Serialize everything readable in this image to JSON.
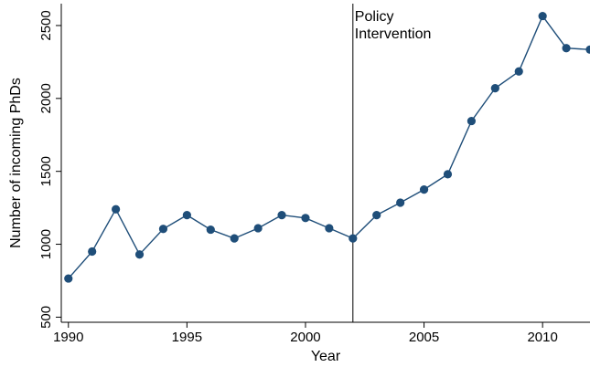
{
  "chart_data": {
    "type": "line",
    "title": "",
    "xlabel": "Year",
    "ylabel": "Number of incoming PhDs",
    "x": [
      1990,
      1991,
      1992,
      1993,
      1994,
      1995,
      1996,
      1997,
      1998,
      1999,
      2000,
      2001,
      2002,
      2003,
      2004,
      2005,
      2006,
      2007,
      2008,
      2009,
      2010,
      2011,
      2012
    ],
    "series": [
      {
        "values": [
          765,
          950,
          1240,
          930,
          1105,
          1200,
          1100,
          1040,
          1110,
          1200,
          1180,
          1110,
          1040,
          1200,
          1285,
          1375,
          1480,
          1845,
          2070,
          2185,
          2565,
          2345,
          2335
        ]
      }
    ],
    "xlim": [
      1989.7,
      2012
    ],
    "ylim": [
      465,
      2650
    ],
    "x_ticks": [
      1990,
      1995,
      2000,
      2005,
      2010
    ],
    "y_ticks": [
      500,
      1000,
      1500,
      2000,
      2500
    ],
    "annotations": [
      {
        "type": "vline",
        "x": 2002,
        "label_lines": [
          "Policy",
          "Intervention"
        ]
      }
    ],
    "grid": false,
    "legend": "none",
    "colors": {
      "series": "#1f4e79",
      "axis": "#000000",
      "vline": "#000000"
    }
  }
}
